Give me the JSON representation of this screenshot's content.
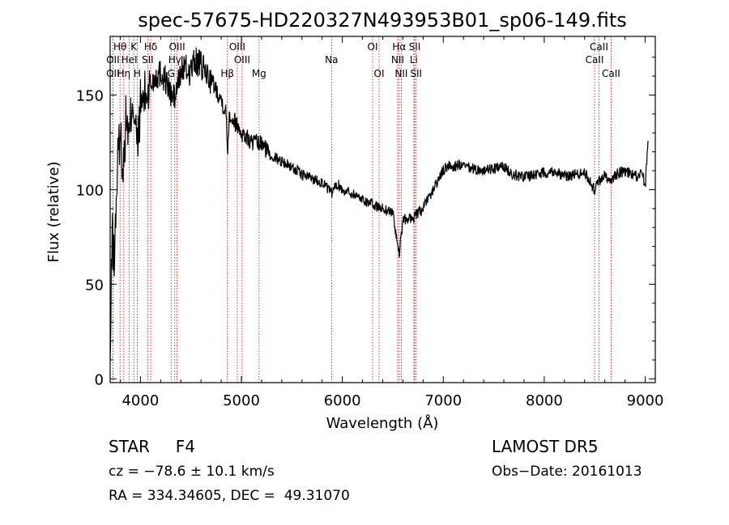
{
  "chart_data": {
    "type": "line",
    "title": "spec-57675-HD220327N493953B01_sp06-149.fits",
    "xlabel": "Wavelength (Å)",
    "ylabel": "Flux (relative)",
    "xlim": [
      3700,
      9100
    ],
    "ylim": [
      -2,
      181
    ],
    "x_ticks": [
      4000,
      5000,
      6000,
      7000,
      8000,
      9000
    ],
    "y_ticks": [
      0,
      50,
      100,
      150
    ],
    "grid": false,
    "series": [
      {
        "x": [
          3700,
          3720,
          3740,
          3760,
          3780,
          3800,
          3830,
          3860,
          3890,
          3920,
          3950,
          3970,
          4000,
          4050,
          4100,
          4150,
          4200,
          4250,
          4300,
          4340,
          4380,
          4420,
          4480,
          4550,
          4600,
          4700,
          4800,
          4850,
          4861,
          4880,
          4950,
          5000,
          5100,
          5200,
          5300,
          5400,
          5500,
          5600,
          5700,
          5800,
          5890,
          5950,
          6000,
          6100,
          6200,
          6300,
          6400,
          6500,
          6563,
          6600,
          6700,
          6800,
          6900,
          7000,
          7050,
          7100,
          7150,
          7200,
          7300,
          7400,
          7500,
          7600,
          7700,
          7800,
          7900,
          8000,
          8100,
          8200,
          8300,
          8400,
          8498,
          8542,
          8600,
          8662,
          8700,
          8800,
          8900,
          8980,
          9000,
          9030
        ],
        "y": [
          5,
          80,
          60,
          95,
          120,
          130,
          110,
          140,
          125,
          150,
          135,
          120,
          145,
          150,
          155,
          160,
          162,
          158,
          150,
          148,
          158,
          165,
          162,
          168,
          165,
          158,
          148,
          140,
          120,
          140,
          135,
          130,
          125,
          124,
          118,
          115,
          112,
          108,
          106,
          104,
          98,
          103,
          100,
          98,
          95,
          92,
          90,
          88,
          65,
          84,
          85,
          90,
          100,
          110,
          113,
          112,
          113,
          112,
          111,
          110,
          111,
          112,
          108,
          107,
          108,
          109,
          110,
          107,
          108,
          109,
          100,
          104,
          108,
          103,
          108,
          110,
          107,
          108,
          100,
          130
        ]
      }
    ],
    "line_markers": [
      {
        "label": "Hθ",
        "wl": 3798,
        "row": 1
      },
      {
        "label": "K",
        "wl": 3934,
        "row": 1
      },
      {
        "label": "Hδ",
        "wl": 4102,
        "row": 1
      },
      {
        "label": "OIII",
        "wl": 4363,
        "row": 1
      },
      {
        "label": "OII",
        "wl": 3727,
        "row": 2
      },
      {
        "label": "HeI",
        "wl": 3889,
        "row": 2
      },
      {
        "label": "SII",
        "wl": 4072,
        "row": 2
      },
      {
        "label": "Hγ",
        "wl": 4340,
        "row": 2
      },
      {
        "label": "OIII",
        "wl": 4959,
        "row": 1
      },
      {
        "label": "OIII",
        "wl": 5007,
        "row": 2
      },
      {
        "label": "OII",
        "wl": 3727,
        "row": 3
      },
      {
        "label": "Hη",
        "wl": 3835,
        "row": 3
      },
      {
        "label": "H",
        "wl": 3968,
        "row": 3
      },
      {
        "label": "G",
        "wl": 4304,
        "row": 3
      },
      {
        "label": "Hβ",
        "wl": 4861,
        "row": 3
      },
      {
        "label": "Mg",
        "wl": 5175,
        "row": 3
      },
      {
        "label": "Na",
        "wl": 5893,
        "row": 2
      },
      {
        "label": "OI",
        "wl": 6300,
        "row": 1
      },
      {
        "label": "OI",
        "wl": 6364,
        "row": 3
      },
      {
        "label": "Hα",
        "wl": 6563,
        "row": 1
      },
      {
        "label": "NII",
        "wl": 6548,
        "row": 2
      },
      {
        "label": "NII",
        "wl": 6584,
        "row": 3
      },
      {
        "label": "SII",
        "wl": 6717,
        "row": 1
      },
      {
        "label": "Li",
        "wl": 6708,
        "row": 2
      },
      {
        "label": "SII",
        "wl": 6731,
        "row": 3
      },
      {
        "label": "CaII",
        "wl": 8542,
        "row": 1
      },
      {
        "label": "CaII",
        "wl": 8498,
        "row": 2
      },
      {
        "label": "CaII",
        "wl": 8662,
        "row": 3
      }
    ]
  },
  "info": {
    "object_type": "STAR",
    "subclass": "F4",
    "survey": "LAMOST DR5",
    "cz": "cz = −78.6 ± 10.1 km/s",
    "obs_date": "Obs−Date: 20161013",
    "radec": "RA = 334.34605, DEC =  49.31070"
  }
}
